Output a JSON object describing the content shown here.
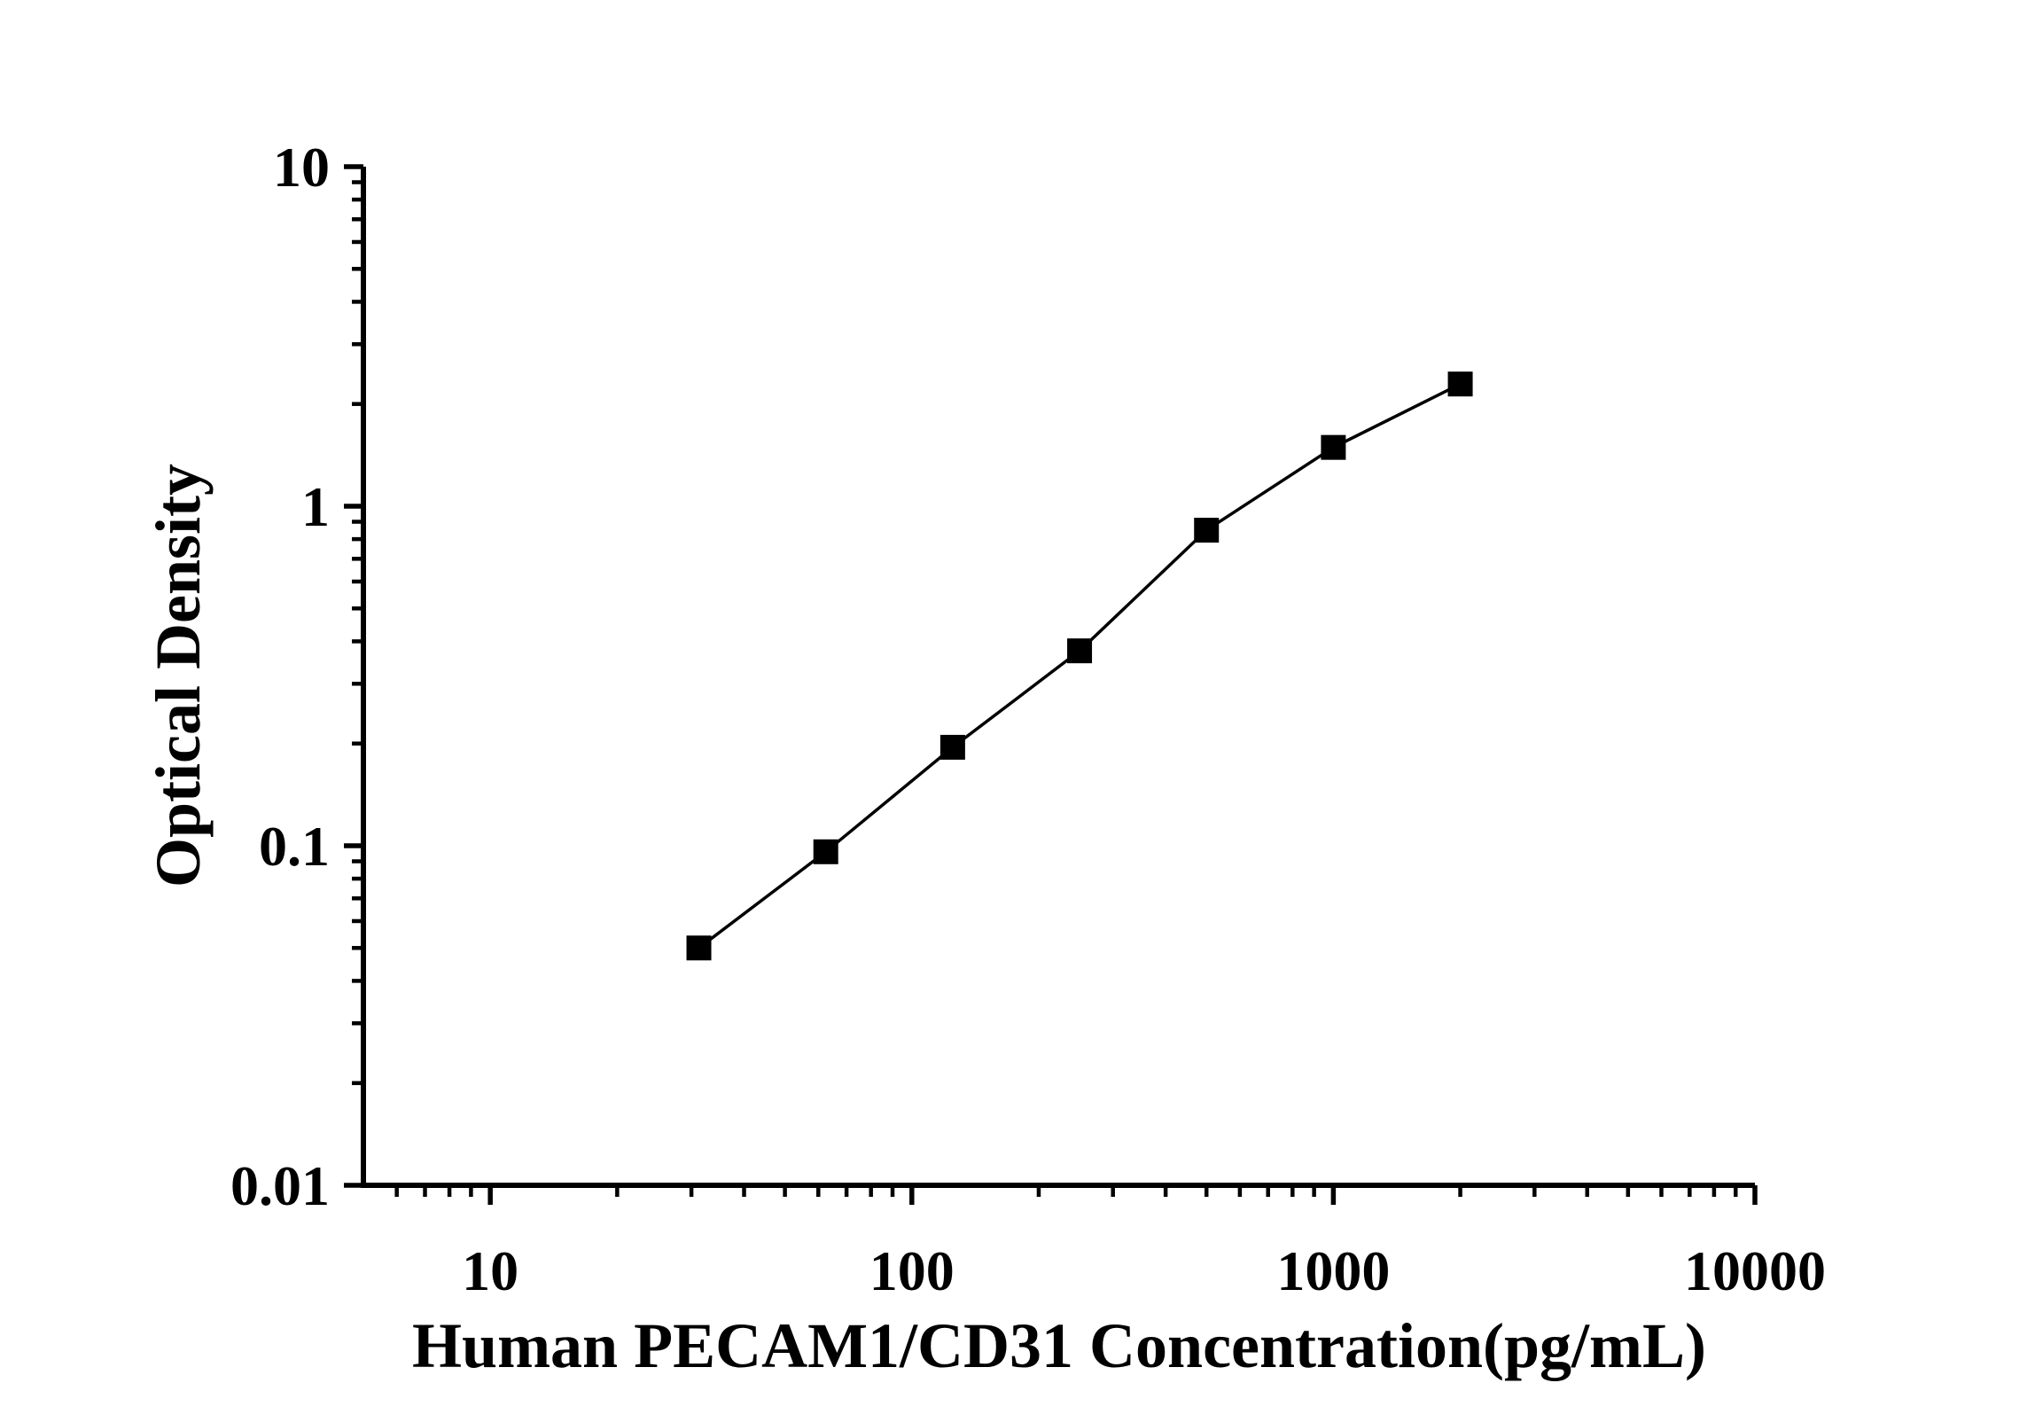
{
  "figure": {
    "background_color": "#ffffff",
    "ink_color": "#000000"
  },
  "chart_data": {
    "type": "scatter",
    "subtype": "line-with-square-markers",
    "title": "",
    "xlabel": "Human PECAM1/CD31 Concentration(pg/mL)",
    "ylabel": "Optical Density",
    "x_scale": "log",
    "y_scale": "log",
    "xlim": [
      5,
      10000
    ],
    "ylim": [
      0.01,
      10
    ],
    "grid": false,
    "legend": "none",
    "x_ticks": [
      {
        "value": 10,
        "label": "10"
      },
      {
        "value": 100,
        "label": "100"
      },
      {
        "value": 1000,
        "label": "1000"
      },
      {
        "value": 10000,
        "label": "10000"
      }
    ],
    "y_ticks": [
      {
        "value": 0.01,
        "label": "0.01"
      },
      {
        "value": 0.1,
        "label": "0.1"
      },
      {
        "value": 1,
        "label": "1"
      },
      {
        "value": 10,
        "label": "10"
      }
    ],
    "series": [
      {
        "name": "standard-curve",
        "marker": "filled-square",
        "color": "#000000",
        "points": [
          {
            "concentration_pg_ml": 31.25,
            "optical_density": 0.05
          },
          {
            "concentration_pg_ml": 62.5,
            "optical_density": 0.096
          },
          {
            "concentration_pg_ml": 125,
            "optical_density": 0.195
          },
          {
            "concentration_pg_ml": 250,
            "optical_density": 0.375
          },
          {
            "concentration_pg_ml": 500,
            "optical_density": 0.85
          },
          {
            "concentration_pg_ml": 1000,
            "optical_density": 1.49
          },
          {
            "concentration_pg_ml": 2000,
            "optical_density": 2.29
          }
        ]
      }
    ]
  }
}
